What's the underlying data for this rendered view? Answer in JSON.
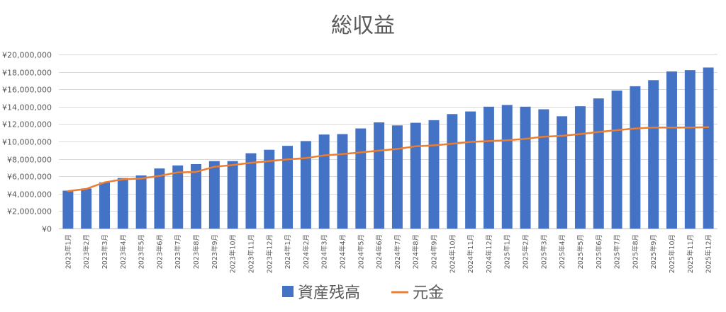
{
  "chart_data": {
    "type": "bar",
    "title": "総収益",
    "xlabel": "",
    "ylabel": "",
    "ylim": [
      0,
      20000000
    ],
    "yticks": [
      0,
      2000000,
      4000000,
      6000000,
      8000000,
      10000000,
      12000000,
      14000000,
      16000000,
      18000000,
      20000000
    ],
    "ytick_labels": [
      "¥0",
      "¥2,000,000",
      "¥4,000,000",
      "¥6,000,000",
      "¥8,000,000",
      "¥10,000,000",
      "¥12,000,000",
      "¥14,000,000",
      "¥16,000,000",
      "¥18,000,000",
      "¥20,000,000"
    ],
    "grid": true,
    "legend_position": "bottom",
    "categories": [
      "2023年1月",
      "2023年2月",
      "2023年3月",
      "2023年4月",
      "2023年5月",
      "2023年6月",
      "2023年7月",
      "2023年8月",
      "2023年9月",
      "2023年10月",
      "2023年11月",
      "2023年12月",
      "2024年1月",
      "2024年2月",
      "2024年3月",
      "2024年4月",
      "2024年5月",
      "2024年6月",
      "2024年7月",
      "2024年8月",
      "2024年9月",
      "2024年10月",
      "2024年11月",
      "2024年12月",
      "2025年1月",
      "2025年2月",
      "2025年3月",
      "2025年4月",
      "2025年5月",
      "2025年6月",
      "2025年7月",
      "2025年8月",
      "2025年9月",
      "2025年10月",
      "2025年11月",
      "2025年12月"
    ],
    "series": [
      {
        "name": "資産残高",
        "type": "bar",
        "color": "#4472C4",
        "values": [
          4350000,
          4600000,
          5300000,
          5800000,
          6100000,
          6900000,
          7250000,
          7400000,
          7750000,
          7750000,
          8650000,
          9050000,
          9500000,
          10050000,
          10800000,
          10850000,
          11500000,
          12200000,
          11850000,
          12150000,
          12450000,
          13150000,
          13450000,
          14000000,
          14200000,
          14000000,
          13700000,
          12900000,
          14050000,
          14950000,
          15850000,
          16350000,
          17050000,
          18050000,
          18200000,
          18500000
        ]
      },
      {
        "name": "元金",
        "type": "line",
        "color": "#ED7D31",
        "values": [
          4300000,
          4550000,
          5300000,
          5650000,
          5750000,
          6050000,
          6450000,
          6500000,
          7100000,
          7300000,
          7550000,
          7750000,
          7950000,
          8100000,
          8400000,
          8550000,
          8750000,
          8950000,
          9150000,
          9450000,
          9550000,
          9750000,
          9950000,
          10050000,
          10150000,
          10300000,
          10550000,
          10650000,
          10850000,
          11100000,
          11300000,
          11500000,
          11600000,
          11600000,
          11600000,
          11650000
        ]
      }
    ]
  }
}
